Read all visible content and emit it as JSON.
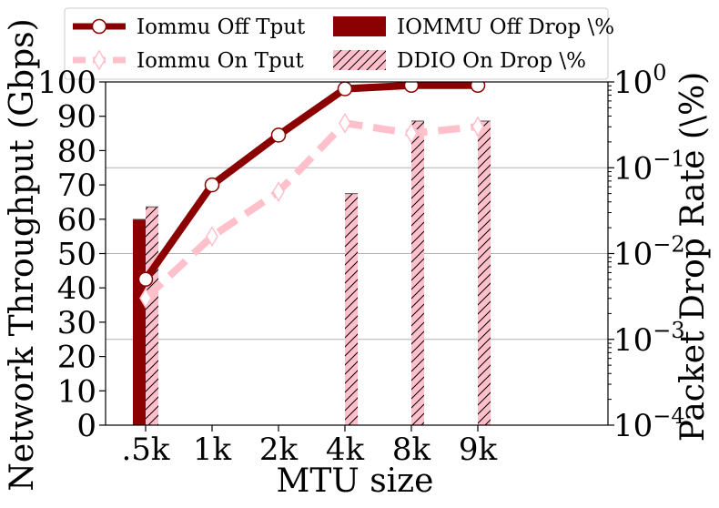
{
  "chart_data": {
    "type": "bar+line",
    "categories": [
      ".5k",
      "1k",
      "2k",
      "4k",
      "8k",
      "9k"
    ],
    "xlabel": "MTU size",
    "ylabel_left": "Network Throughput (Gbps)",
    "ylabel_right": "Packet Drop Rate (\\%)",
    "ylim_left": [
      0,
      100
    ],
    "yticks_left": [
      "0",
      "10",
      "20",
      "30",
      "40",
      "50",
      "60",
      "70",
      "80",
      "90",
      "100"
    ],
    "ylim_right": [
      0.0001,
      1
    ],
    "right_scale": "log",
    "yticks_right": [
      {
        "base": "10",
        "exp": "−4"
      },
      {
        "base": "10",
        "exp": "−3"
      },
      {
        "base": "10",
        "exp": "−2"
      },
      {
        "base": "10",
        "exp": "−1"
      },
      {
        "base": "10",
        "exp": "0"
      }
    ],
    "grid": "horizontal at right-axis decades",
    "legend_placement": "top, two columns",
    "lines": [
      {
        "name": "Iommu Off Tput",
        "color": "#8b0000",
        "marker": "circle",
        "linestyle": "solid",
        "values": [
          42.5,
          70,
          84.5,
          98,
          99,
          99
        ]
      },
      {
        "name": "Iommu On Tput",
        "color": "#ffc0cb",
        "marker": "diamond",
        "linestyle": "dashed",
        "values": [
          37,
          55,
          68,
          88,
          85,
          87
        ]
      }
    ],
    "bars": [
      {
        "name": "IOMMU Off Drop \\%",
        "color": "#8b0000",
        "hatch": "none",
        "values": [
          0.025,
          null,
          null,
          null,
          null,
          null
        ]
      },
      {
        "name": "DDIO On Drop \\%",
        "color": "#ffc0cb",
        "hatch": "diagonal",
        "values": [
          0.035,
          null,
          null,
          0.05,
          0.35,
          0.35
        ]
      }
    ]
  }
}
